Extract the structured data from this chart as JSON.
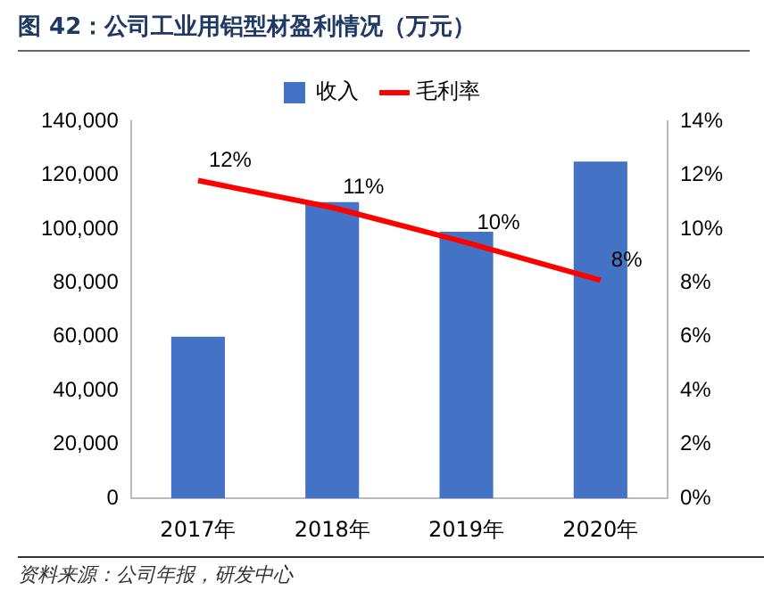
{
  "chart_data": {
    "type": "bar",
    "title": "图 42：公司工业用铝型材盈利情况（万元）",
    "categories": [
      "2017年",
      "2018年",
      "2019年",
      "2020年"
    ],
    "series": [
      {
        "name": "收入",
        "color": "#4472c4",
        "values": [
          60000,
          110000,
          99000,
          125000
        ]
      },
      {
        "name": "毛利率",
        "type": "line",
        "axis": "y2",
        "color": "#ff0000",
        "values": [
          11.8,
          10.8,
          9.5,
          8.1
        ],
        "value_labels": [
          "12%",
          "11%",
          "10%",
          "8%"
        ],
        "marker": "none"
      }
    ],
    "ylim": [
      0,
      140000
    ],
    "yticks": [
      0,
      {
        "value": 20000,
        "label": "20,000"
      },
      {
        "value": 40000,
        "label": "40,000"
      },
      {
        "value": 60000,
        "label": "60,000"
      },
      {
        "value": 80000,
        "label": "80,000"
      },
      {
        "value": 100000,
        "label": "100,000"
      },
      {
        "value": 120000,
        "label": "120,000"
      },
      {
        "value": 140000,
        "label": "140,000"
      }
    ],
    "y2lim": [
      0,
      14
    ],
    "y2ticks": [
      {
        "value": 0,
        "label": "0%"
      },
      {
        "value": 2,
        "label": "2%"
      },
      {
        "value": 4,
        "label": "4%"
      },
      {
        "value": 6,
        "label": "6%"
      },
      {
        "value": 8,
        "label": "8%"
      },
      {
        "value": 10,
        "label": "10%"
      },
      {
        "value": 12,
        "label": "12%"
      },
      {
        "value": 14,
        "label": "14%"
      }
    ],
    "grid": false,
    "legend": "top",
    "annotations": [
      "资料来源：公司年报，研发中心"
    ]
  }
}
